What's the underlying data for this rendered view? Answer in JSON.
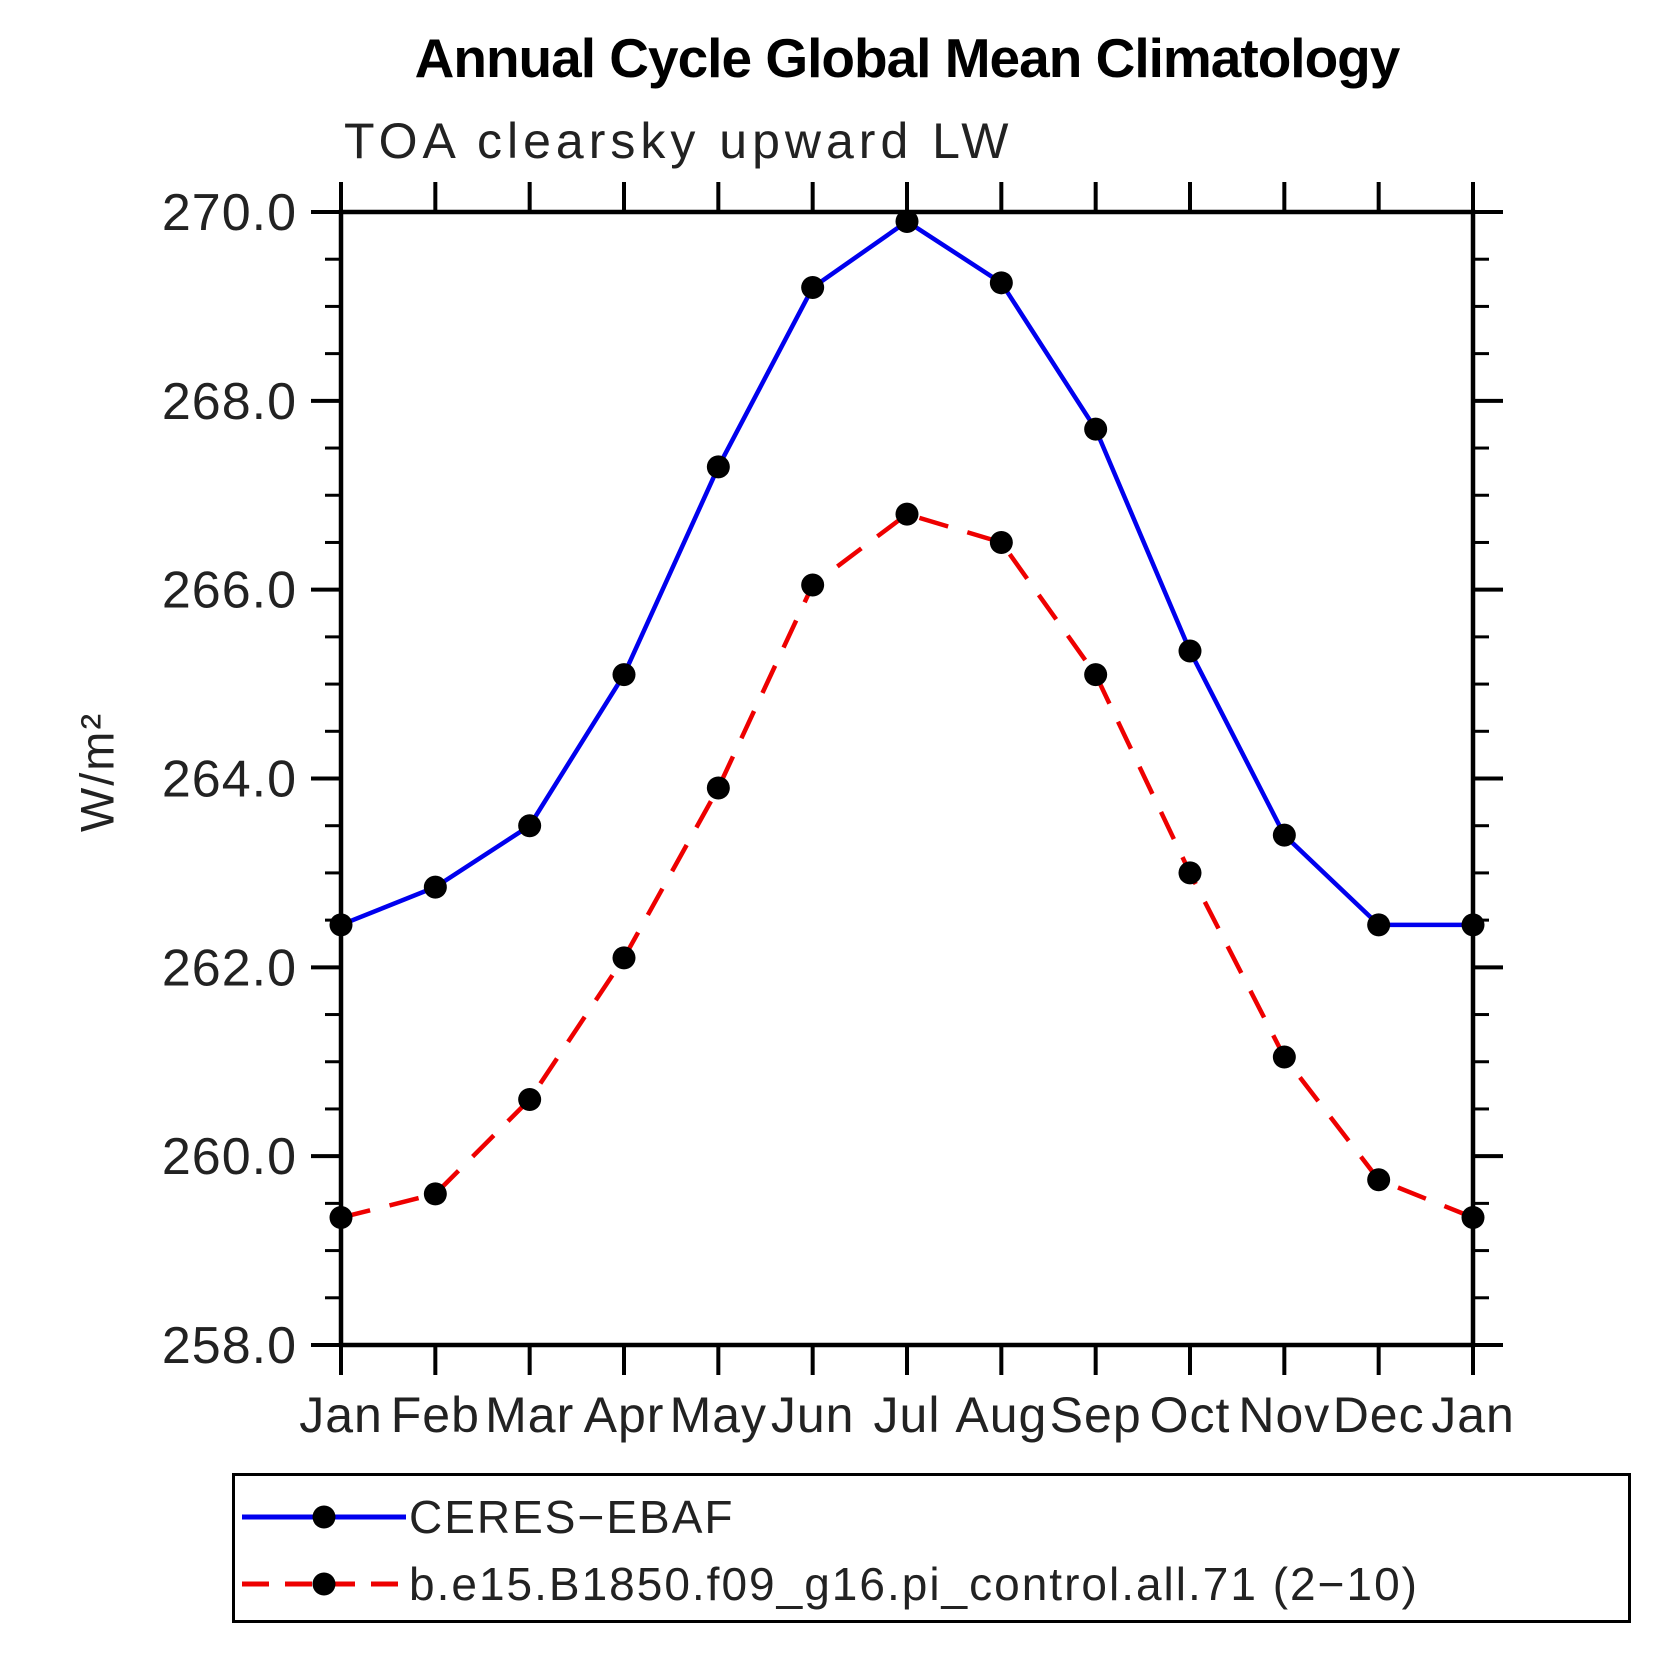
{
  "title": "Annual Cycle Global Mean Climatology",
  "subtitle": "TOA clearsky upward LW",
  "ylabel": "W/m²",
  "chart_data": {
    "type": "line",
    "x_categories": [
      "Jan",
      "Feb",
      "Mar",
      "Apr",
      "May",
      "Jun",
      "Jul",
      "Aug",
      "Sep",
      "Oct",
      "Nov",
      "Dec",
      "Jan"
    ],
    "ylim": [
      258.0,
      270.0
    ],
    "y_major_step": 2.0,
    "y_minor_step": 0.5,
    "y_tick_labels": [
      "258.0",
      "260.0",
      "262.0",
      "264.0",
      "266.0",
      "268.0",
      "270.0"
    ],
    "grid": false,
    "legend_position": "bottom",
    "frame_color": "#000000",
    "series": [
      {
        "name": "CERES−EBAF",
        "color": "#0000ee",
        "line_style": "solid",
        "marker": "circle",
        "marker_color": "#000000",
        "values": [
          262.45,
          262.85,
          263.5,
          265.1,
          267.3,
          269.2,
          269.9,
          269.25,
          267.7,
          265.35,
          263.4,
          262.45,
          262.45
        ]
      },
      {
        "name": "b.e15.B1850.f09_g16.pi_control.all.71 (2−10)",
        "color": "#ee0000",
        "line_style": "dashed",
        "marker": "circle",
        "marker_color": "#000000",
        "values": [
          259.35,
          259.6,
          260.6,
          262.1,
          263.9,
          266.05,
          266.8,
          266.5,
          265.1,
          263.0,
          261.05,
          259.75,
          259.35
        ]
      }
    ]
  }
}
